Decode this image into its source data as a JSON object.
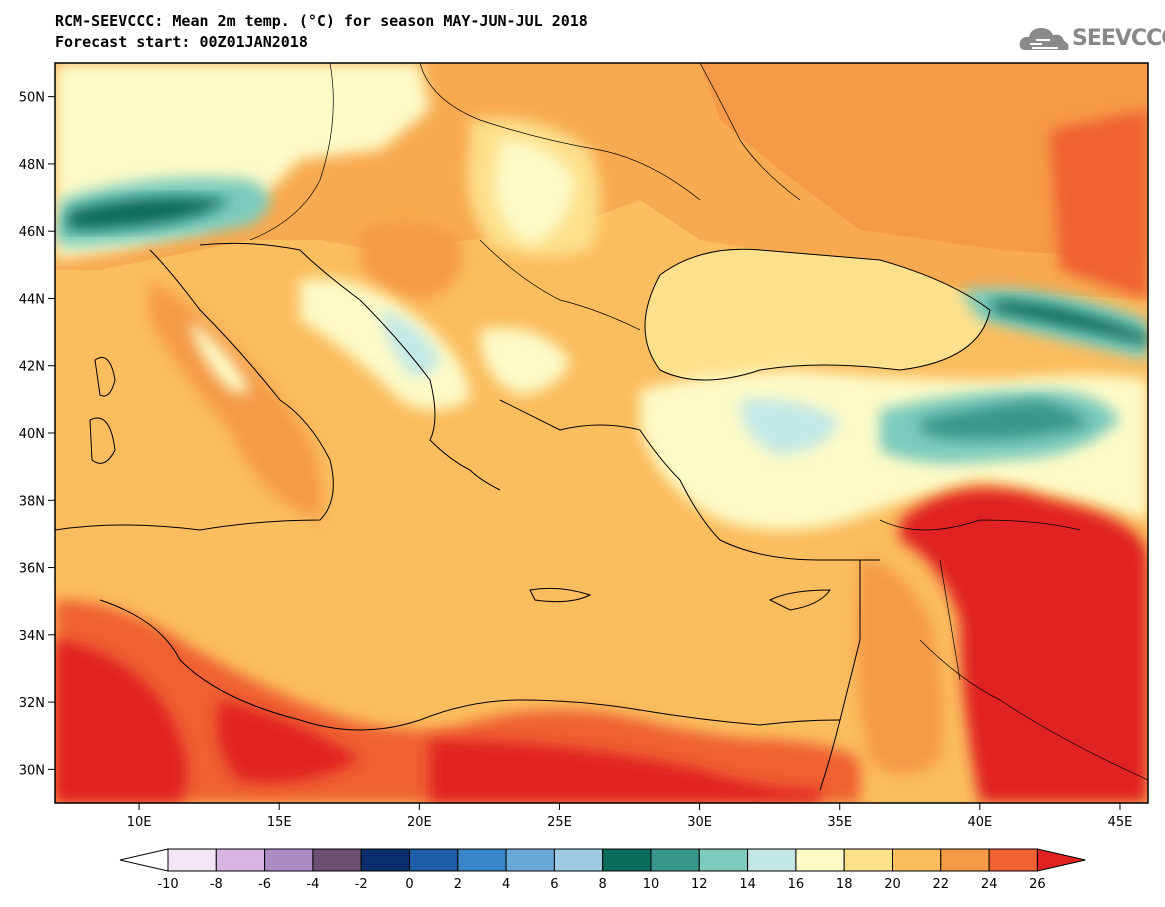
{
  "title": {
    "line1": "RCM-SEEVCCC: Mean 2m temp. (°C) for season MAY-JUN-JUL 2018",
    "line2": "Forecast start: 00Z01JAN2018"
  },
  "logo": {
    "text": "SEEVCCC",
    "icon": "cloud-icon"
  },
  "map": {
    "lat_labels": [
      "50N",
      "48N",
      "46N",
      "44N",
      "42N",
      "40N",
      "38N",
      "36N",
      "34N",
      "32N",
      "30N"
    ],
    "lat_values": [
      50,
      48,
      46,
      44,
      42,
      40,
      38,
      36,
      34,
      32,
      30
    ],
    "lon_labels": [
      "10E",
      "15E",
      "20E",
      "25E",
      "30E",
      "35E",
      "40E",
      "45E"
    ],
    "lon_values": [
      10,
      15,
      20,
      25,
      30,
      35,
      40,
      45
    ],
    "lat_range": [
      29,
      51
    ],
    "lon_range": [
      7,
      46
    ]
  },
  "colorbar": {
    "labels": [
      "-10",
      "-8",
      "-6",
      "-4",
      "-2",
      "0",
      "2",
      "4",
      "6",
      "8",
      "10",
      "12",
      "14",
      "16",
      "18",
      "20",
      "22",
      "24",
      "26"
    ],
    "colors": [
      "#f2e6f5",
      "#d8b5e3",
      "#ab8dc3",
      "#6b4f73",
      "#0a2d6b",
      "#1e5ca8",
      "#3a85c6",
      "#69aad8",
      "#9ec9e2",
      "#0b6b5a",
      "#3a968a",
      "#7ccbbd",
      "#c3e8e6",
      "#fdfbc8",
      "#fde08c",
      "#fbbd5e",
      "#f59a48",
      "#ef6033",
      "#e02320"
    ],
    "under_color": "#ffffff",
    "over_color": "#e02320"
  }
}
